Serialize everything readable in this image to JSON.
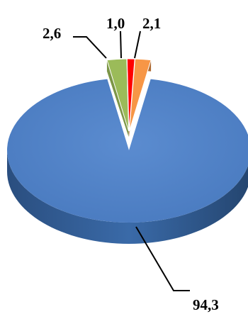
{
  "chart_data": {
    "type": "pie",
    "title": "",
    "slices": [
      {
        "label": "94,3",
        "value": 94.3,
        "color": "#4F81BD"
      },
      {
        "label": "2,6",
        "value": 2.6,
        "color": "#9BBB59"
      },
      {
        "label": "1,0",
        "value": 1.0,
        "color": "#FF0000"
      },
      {
        "label": "2,1",
        "value": 2.1,
        "color": "#F79646"
      }
    ],
    "legend": "none",
    "style": "3d-exploded"
  }
}
